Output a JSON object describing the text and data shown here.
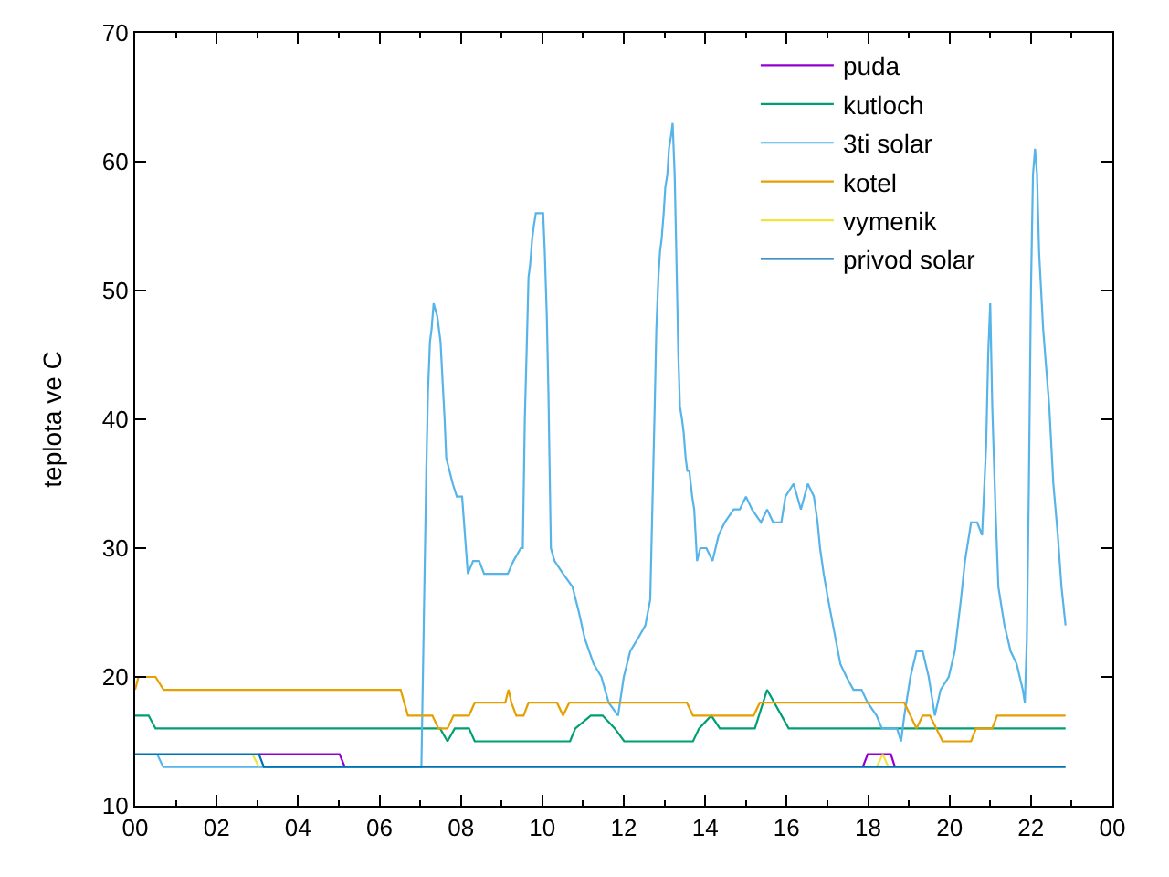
{
  "chart_data": {
    "type": "line",
    "ylabel": "teplota ve C",
    "legend": "top right",
    "xlim": [
      0,
      24
    ],
    "ylim": [
      10,
      70
    ],
    "xticks": [
      {
        "value": 0,
        "label": "00"
      },
      {
        "value": 1,
        "label": null
      },
      {
        "value": 2,
        "label": "02"
      },
      {
        "value": 3,
        "label": null
      },
      {
        "value": 4,
        "label": "04"
      },
      {
        "value": 5,
        "label": null
      },
      {
        "value": 6,
        "label": "06"
      },
      {
        "value": 7,
        "label": null
      },
      {
        "value": 8,
        "label": "08"
      },
      {
        "value": 9,
        "label": null
      },
      {
        "value": 10,
        "label": "10"
      },
      {
        "value": 11,
        "label": null
      },
      {
        "value": 12,
        "label": "12"
      },
      {
        "value": 13,
        "label": null
      },
      {
        "value": 14,
        "label": "14"
      },
      {
        "value": 15,
        "label": null
      },
      {
        "value": 16,
        "label": "16"
      },
      {
        "value": 17,
        "label": null
      },
      {
        "value": 18,
        "label": "18"
      },
      {
        "value": 19,
        "label": null
      },
      {
        "value": 20,
        "label": "20"
      },
      {
        "value": 21,
        "label": null
      },
      {
        "value": 22,
        "label": "22"
      },
      {
        "value": 23,
        "label": null
      },
      {
        "value": 24,
        "label": "00"
      }
    ],
    "yticks": [
      10,
      20,
      30,
      40,
      50,
      60,
      70
    ],
    "series": [
      {
        "name": "puda",
        "color": "#9400d3",
        "x": [
          3.04,
          5.02,
          5.15,
          10,
          17.87,
          17.99,
          18.56,
          18.66
        ],
        "values": [
          14,
          14,
          13,
          null,
          13,
          14,
          14,
          13
        ]
      },
      {
        "name": "kutloch",
        "color": "#009e73",
        "x": [
          0,
          0.33,
          0.5,
          7.49,
          7.67,
          7.85,
          8.2,
          8.34,
          10.68,
          10.81,
          11.19,
          11.48,
          11.78,
          12.01,
          13.7,
          13.85,
          14.15,
          14.36,
          15.22,
          15.52,
          16.05,
          22.85
        ],
        "values": [
          17,
          17,
          16,
          16,
          15,
          16,
          16,
          15,
          15,
          16,
          17,
          17,
          16,
          15,
          15,
          16,
          17,
          16,
          16,
          19,
          16,
          16
        ]
      },
      {
        "name": "3ti solar",
        "color": "#56b4e9",
        "x": [
          0.54,
          0.69,
          7.03,
          7.15,
          7.19,
          7.24,
          7.28,
          7.33,
          7.42,
          7.5,
          7.55,
          7.6,
          7.64,
          7.72,
          7.8,
          7.9,
          8.03,
          8.17,
          8.3,
          8.45,
          8.57,
          9.15,
          9.29,
          9.47,
          9.52,
          9.57,
          9.62,
          9.66,
          9.7,
          9.75,
          9.79,
          9.84,
          10.02,
          10.06,
          10.11,
          10.15,
          10.21,
          10.3,
          10.51,
          10.74,
          10.9,
          11.04,
          11.26,
          11.45,
          11.63,
          11.86,
          12.0,
          12.16,
          12.35,
          12.53,
          12.65,
          12.76,
          12.8,
          12.85,
          12.89,
          12.93,
          12.98,
          13.02,
          13.07,
          13.11,
          13.16,
          13.2,
          13.25,
          13.29,
          13.34,
          13.38,
          13.43,
          13.47,
          13.52,
          13.56,
          13.61,
          13.68,
          13.73,
          13.8,
          13.88,
          14.03,
          14.18,
          14.33,
          14.48,
          14.7,
          14.85,
          15.0,
          15.15,
          15.37,
          15.52,
          15.67,
          15.87,
          15.97,
          16.17,
          16.35,
          16.52,
          16.67,
          16.76,
          16.82,
          16.91,
          17.02,
          17.14,
          17.32,
          17.47,
          17.64,
          17.84,
          17.99,
          18.21,
          18.34,
          18.71,
          18.81,
          18.89,
          19.04,
          19.19,
          19.34,
          19.49,
          19.64,
          19.78,
          19.98,
          20.13,
          20.28,
          20.38,
          20.53,
          20.68,
          20.8,
          20.9,
          20.95,
          21.0,
          21.05,
          21.13,
          21.2,
          21.35,
          21.5,
          21.65,
          21.8,
          21.85,
          21.9,
          21.95,
          22.0,
          22.05,
          22.1,
          22.15,
          22.2,
          22.3,
          22.4,
          22.45,
          22.55,
          22.66,
          22.75,
          22.85
        ],
        "values": [
          14,
          13,
          13,
          36,
          42,
          46,
          47,
          49,
          48,
          46,
          43,
          40,
          37,
          36,
          35,
          34,
          34,
          28,
          29,
          29,
          28,
          28,
          29,
          30,
          30,
          40,
          46,
          51,
          52,
          54,
          55,
          56,
          56,
          53,
          48,
          42,
          30,
          29,
          28,
          27,
          25,
          23,
          21,
          20,
          18,
          17,
          20,
          22,
          23,
          24,
          26,
          41,
          47,
          51,
          53,
          54,
          56,
          58,
          59,
          61,
          62,
          63,
          59,
          53,
          45,
          41,
          40,
          39,
          37,
          36,
          36,
          34,
          33,
          29,
          30,
          30,
          29,
          31,
          32,
          33,
          33,
          34,
          33,
          32,
          33,
          32,
          32,
          34,
          35,
          33,
          35,
          34,
          32,
          30,
          28,
          26,
          24,
          21,
          20,
          19,
          19,
          18,
          17,
          16,
          16,
          15,
          17,
          20,
          22,
          22,
          20,
          17,
          19,
          20,
          22,
          26,
          29,
          32,
          32,
          31,
          38,
          45,
          49,
          41,
          33,
          27,
          24,
          22,
          21,
          19,
          18,
          23,
          35,
          50,
          59,
          61,
          59,
          53,
          47,
          43,
          41,
          35,
          31,
          27,
          24
        ]
      },
      {
        "name": "kotel",
        "color": "#e69f00",
        "x": [
          0,
          0.08,
          0.5,
          0.7,
          6.52,
          6.7,
          7.3,
          7.45,
          7.67,
          7.82,
          8.2,
          8.34,
          9.09,
          9.17,
          9.24,
          9.36,
          9.54,
          9.66,
          10.36,
          10.51,
          10.66,
          13.55,
          13.7,
          15.19,
          15.34,
          18.89,
          19.19,
          19.34,
          19.52,
          19.83,
          20.53,
          20.65,
          21.05,
          21.17,
          22.85
        ],
        "values": [
          19,
          20,
          20,
          19,
          19,
          17,
          17,
          16,
          16,
          17,
          17,
          18,
          18,
          19,
          18,
          17,
          17,
          18,
          18,
          17,
          18,
          18,
          17,
          17,
          18,
          18,
          16,
          17,
          17,
          15,
          15,
          16,
          16,
          17,
          17
        ]
      },
      {
        "name": "vymenik",
        "color": "#f0e442",
        "x": [
          2.88,
          3.04,
          10,
          18.21,
          18.36,
          18.5
        ],
        "values": [
          14,
          13,
          null,
          13,
          14,
          13
        ]
      },
      {
        "name": "privod solar",
        "color": "#0072b2",
        "x": [
          0,
          3.04,
          3.16,
          22.85
        ],
        "values": [
          14,
          14,
          13,
          13
        ]
      }
    ]
  }
}
